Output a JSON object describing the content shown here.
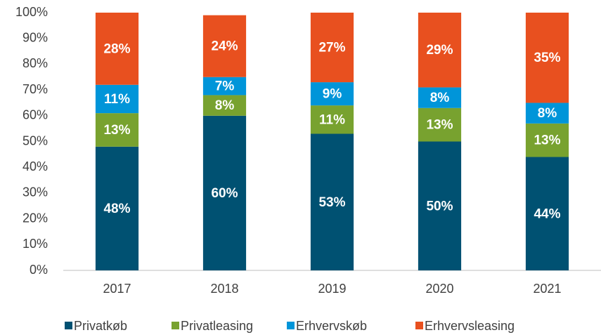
{
  "chart_data": {
    "type": "stacked_bar",
    "categories": [
      "2017",
      "2018",
      "2019",
      "2020",
      "2021"
    ],
    "series": [
      {
        "name": "Privatkøb",
        "color": "#005172",
        "values": [
          48,
          60,
          53,
          50,
          44
        ],
        "value_labels": [
          "48%",
          "60%",
          "53%",
          "50%",
          "44%"
        ]
      },
      {
        "name": "Privatleasing",
        "color": "#78a22f",
        "values": [
          13,
          8,
          11,
          13,
          13
        ],
        "value_labels": [
          "13%",
          "8%",
          "11%",
          "13%",
          "13%"
        ]
      },
      {
        "name": "Erhvervskøb",
        "color": "#0095d9",
        "values": [
          11,
          7,
          9,
          8,
          8
        ],
        "value_labels": [
          "11%",
          "7%",
          "9%",
          "8%",
          "8%"
        ]
      },
      {
        "name": "Erhvervsleasing",
        "color": "#e8501f",
        "values": [
          28,
          24,
          27,
          29,
          35
        ],
        "value_labels": [
          "28%",
          "24%",
          "27%",
          "29%",
          "35%"
        ]
      }
    ],
    "ylim": [
      0,
      100
    ],
    "yticks": [
      {
        "value": 0,
        "label": "0%"
      },
      {
        "value": 10,
        "label": "10%"
      },
      {
        "value": 20,
        "label": "20%"
      },
      {
        "value": 30,
        "label": "30%"
      },
      {
        "value": 40,
        "label": "40%"
      },
      {
        "value": 50,
        "label": "50%"
      },
      {
        "value": 60,
        "label": "60%"
      },
      {
        "value": 70,
        "label": "70%"
      },
      {
        "value": 80,
        "label": "80%"
      },
      {
        "value": 90,
        "label": "90%"
      },
      {
        "value": 100,
        "label": "100%"
      }
    ],
    "grid": false,
    "legend": "bottom"
  }
}
